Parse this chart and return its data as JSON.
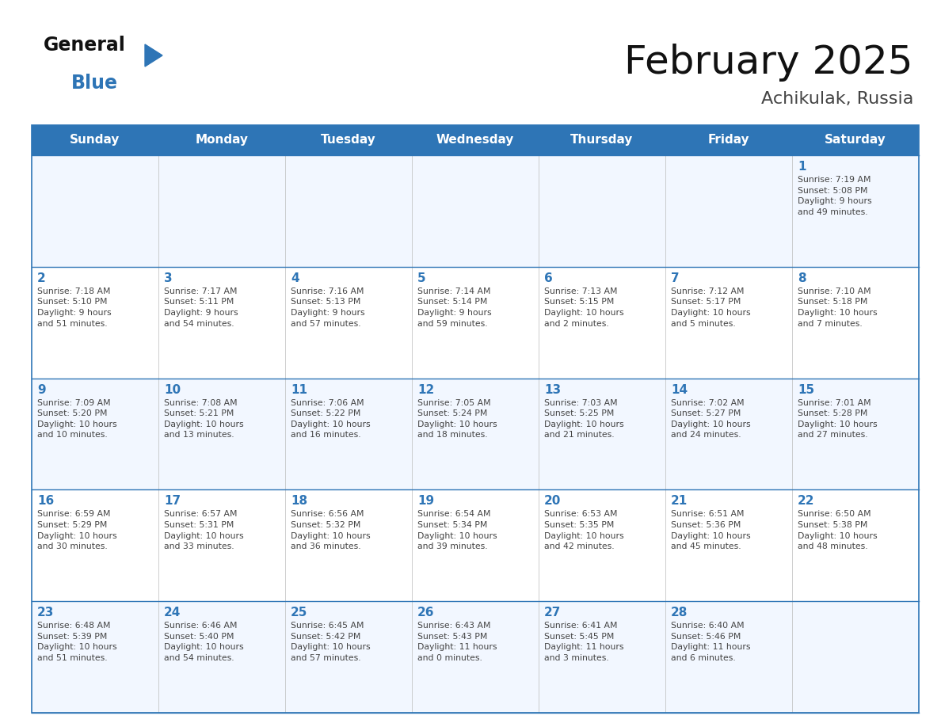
{
  "title": "February 2025",
  "subtitle": "Achikulak, Russia",
  "header_color": "#2E75B6",
  "header_text_color": "#FFFFFF",
  "cell_bg_color_even": "#F2F7FF",
  "cell_bg_color_odd": "#FFFFFF",
  "border_color": "#2E75B6",
  "day_number_color": "#2E75B6",
  "cell_text_color": "#444444",
  "logo_general_color": "#111111",
  "logo_blue_color": "#2E75B6",
  "logo_triangle_color": "#2E75B6",
  "days_of_week": [
    "Sunday",
    "Monday",
    "Tuesday",
    "Wednesday",
    "Thursday",
    "Friday",
    "Saturday"
  ],
  "weeks": [
    [
      {
        "day": null,
        "info": null
      },
      {
        "day": null,
        "info": null
      },
      {
        "day": null,
        "info": null
      },
      {
        "day": null,
        "info": null
      },
      {
        "day": null,
        "info": null
      },
      {
        "day": null,
        "info": null
      },
      {
        "day": 1,
        "info": "Sunrise: 7:19 AM\nSunset: 5:08 PM\nDaylight: 9 hours\nand 49 minutes."
      }
    ],
    [
      {
        "day": 2,
        "info": "Sunrise: 7:18 AM\nSunset: 5:10 PM\nDaylight: 9 hours\nand 51 minutes."
      },
      {
        "day": 3,
        "info": "Sunrise: 7:17 AM\nSunset: 5:11 PM\nDaylight: 9 hours\nand 54 minutes."
      },
      {
        "day": 4,
        "info": "Sunrise: 7:16 AM\nSunset: 5:13 PM\nDaylight: 9 hours\nand 57 minutes."
      },
      {
        "day": 5,
        "info": "Sunrise: 7:14 AM\nSunset: 5:14 PM\nDaylight: 9 hours\nand 59 minutes."
      },
      {
        "day": 6,
        "info": "Sunrise: 7:13 AM\nSunset: 5:15 PM\nDaylight: 10 hours\nand 2 minutes."
      },
      {
        "day": 7,
        "info": "Sunrise: 7:12 AM\nSunset: 5:17 PM\nDaylight: 10 hours\nand 5 minutes."
      },
      {
        "day": 8,
        "info": "Sunrise: 7:10 AM\nSunset: 5:18 PM\nDaylight: 10 hours\nand 7 minutes."
      }
    ],
    [
      {
        "day": 9,
        "info": "Sunrise: 7:09 AM\nSunset: 5:20 PM\nDaylight: 10 hours\nand 10 minutes."
      },
      {
        "day": 10,
        "info": "Sunrise: 7:08 AM\nSunset: 5:21 PM\nDaylight: 10 hours\nand 13 minutes."
      },
      {
        "day": 11,
        "info": "Sunrise: 7:06 AM\nSunset: 5:22 PM\nDaylight: 10 hours\nand 16 minutes."
      },
      {
        "day": 12,
        "info": "Sunrise: 7:05 AM\nSunset: 5:24 PM\nDaylight: 10 hours\nand 18 minutes."
      },
      {
        "day": 13,
        "info": "Sunrise: 7:03 AM\nSunset: 5:25 PM\nDaylight: 10 hours\nand 21 minutes."
      },
      {
        "day": 14,
        "info": "Sunrise: 7:02 AM\nSunset: 5:27 PM\nDaylight: 10 hours\nand 24 minutes."
      },
      {
        "day": 15,
        "info": "Sunrise: 7:01 AM\nSunset: 5:28 PM\nDaylight: 10 hours\nand 27 minutes."
      }
    ],
    [
      {
        "day": 16,
        "info": "Sunrise: 6:59 AM\nSunset: 5:29 PM\nDaylight: 10 hours\nand 30 minutes."
      },
      {
        "day": 17,
        "info": "Sunrise: 6:57 AM\nSunset: 5:31 PM\nDaylight: 10 hours\nand 33 minutes."
      },
      {
        "day": 18,
        "info": "Sunrise: 6:56 AM\nSunset: 5:32 PM\nDaylight: 10 hours\nand 36 minutes."
      },
      {
        "day": 19,
        "info": "Sunrise: 6:54 AM\nSunset: 5:34 PM\nDaylight: 10 hours\nand 39 minutes."
      },
      {
        "day": 20,
        "info": "Sunrise: 6:53 AM\nSunset: 5:35 PM\nDaylight: 10 hours\nand 42 minutes."
      },
      {
        "day": 21,
        "info": "Sunrise: 6:51 AM\nSunset: 5:36 PM\nDaylight: 10 hours\nand 45 minutes."
      },
      {
        "day": 22,
        "info": "Sunrise: 6:50 AM\nSunset: 5:38 PM\nDaylight: 10 hours\nand 48 minutes."
      }
    ],
    [
      {
        "day": 23,
        "info": "Sunrise: 6:48 AM\nSunset: 5:39 PM\nDaylight: 10 hours\nand 51 minutes."
      },
      {
        "day": 24,
        "info": "Sunrise: 6:46 AM\nSunset: 5:40 PM\nDaylight: 10 hours\nand 54 minutes."
      },
      {
        "day": 25,
        "info": "Sunrise: 6:45 AM\nSunset: 5:42 PM\nDaylight: 10 hours\nand 57 minutes."
      },
      {
        "day": 26,
        "info": "Sunrise: 6:43 AM\nSunset: 5:43 PM\nDaylight: 11 hours\nand 0 minutes."
      },
      {
        "day": 27,
        "info": "Sunrise: 6:41 AM\nSunset: 5:45 PM\nDaylight: 11 hours\nand 3 minutes."
      },
      {
        "day": 28,
        "info": "Sunrise: 6:40 AM\nSunset: 5:46 PM\nDaylight: 11 hours\nand 6 minutes."
      },
      {
        "day": null,
        "info": null
      }
    ]
  ]
}
